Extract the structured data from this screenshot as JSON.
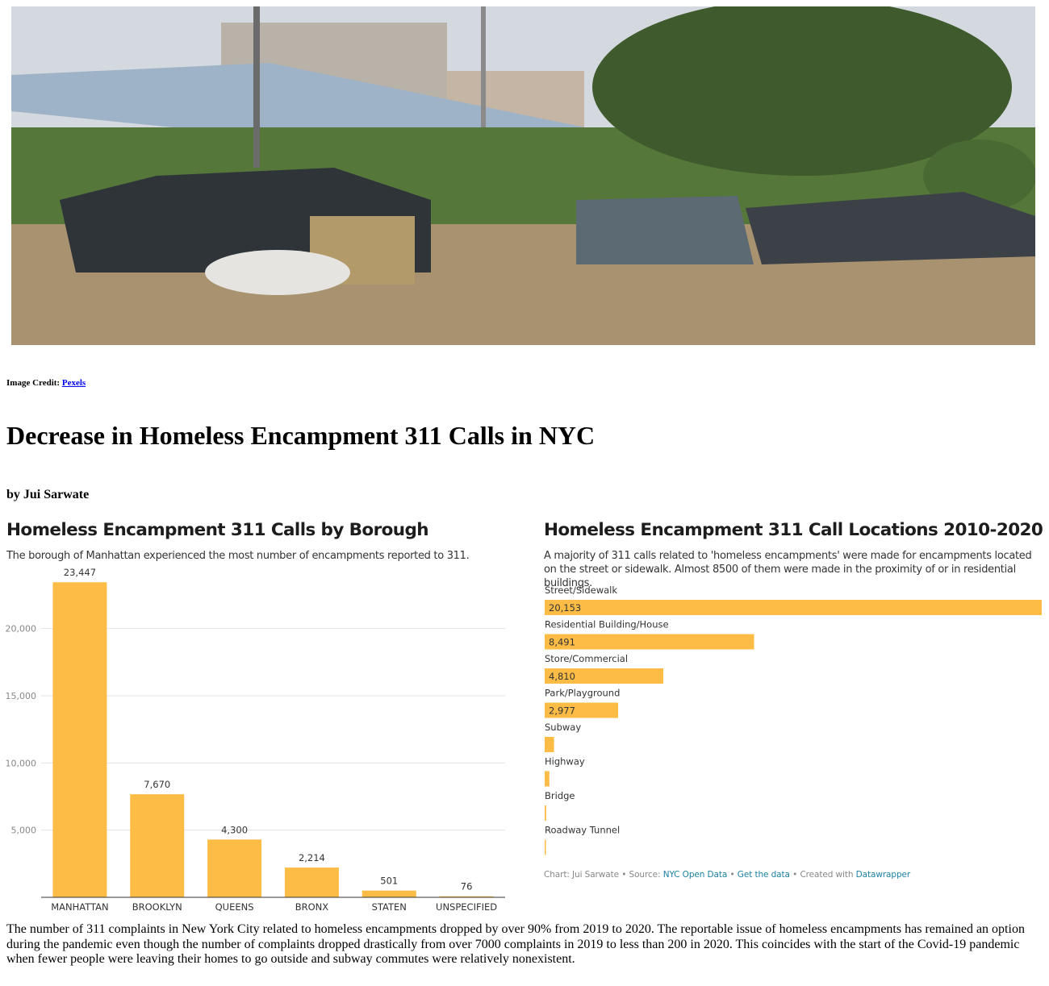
{
  "image": {
    "alt": "Homeless encampment photo",
    "credit_label": "Image Credit:",
    "credit_link": "Pexels"
  },
  "article": {
    "title": "Decrease in Homeless Encampment 311 Calls in NYC",
    "byline": "by Jui Sarwate",
    "body": "The number of 311 complaints in New York City related to homeless encampments dropped by over 90% from 2019 to 2020. The reportable issue of homeless encampments has remained an option during the pandemic even though the number of complaints dropped drastically from over 7000 complaints in 2019 to less than 200 in 2020. This coincides with the start of the Covid-19 pandemic when fewer people were leaving their homes to go outside and subway commutes were relatively nonexistent."
  },
  "colors": {
    "bar": "#fdbc45",
    "grid": "#e3e3e3",
    "link": "#1d81a2"
  },
  "chart_data": [
    {
      "type": "bar",
      "title": "Homeless Encampment 311 Calls by Borough",
      "subtitle": "The borough of Manhattan experienced the most number of encampments reported to 311.",
      "categories": [
        "MANHATTAN",
        "BROOKLYN",
        "QUEENS",
        "BRONX",
        "STATEN",
        "UNSPECIFIED"
      ],
      "values": [
        23447,
        7670,
        4300,
        2214,
        501,
        76
      ],
      "value_labels": [
        "23,447",
        "7,670",
        "4,300",
        "2,214",
        "501",
        "76"
      ],
      "yticks": [
        5000,
        10000,
        15000,
        20000
      ],
      "ytick_labels": [
        "5,000",
        "10,000",
        "15,000",
        "20,000"
      ],
      "ylim": [
        0,
        24000
      ],
      "grid": true
    },
    {
      "type": "bar",
      "orientation": "horizontal",
      "title": "Homeless Encampment 311 Call Locations 2010-2020",
      "subtitle": "A majority of 311 calls related to 'homeless encampments' were made for encampments located on the street or sidewalk. Almost 8500 of them were made in the proximity of or in residential buildings.",
      "categories": [
        "Street/Sidewalk",
        "Residential Building/House",
        "Store/Commercial",
        "Park/Playground",
        "Subway",
        "Highway",
        "Bridge",
        "Roadway Tunnel"
      ],
      "values": [
        20153,
        8491,
        4810,
        2977,
        380,
        190,
        60,
        35
      ],
      "value_labels": [
        "20,153",
        "8,491",
        "4,810",
        "2,977",
        "",
        "",
        "",
        ""
      ],
      "xlim": [
        0,
        20153
      ],
      "grid": false,
      "footer": {
        "byline": "Chart: Jui Sarwate",
        "source_label": "Source:",
        "source_link": "NYC Open Data",
        "data_link": "Get the data",
        "created_label": "Created with",
        "created_link": "Datawrapper"
      }
    }
  ]
}
